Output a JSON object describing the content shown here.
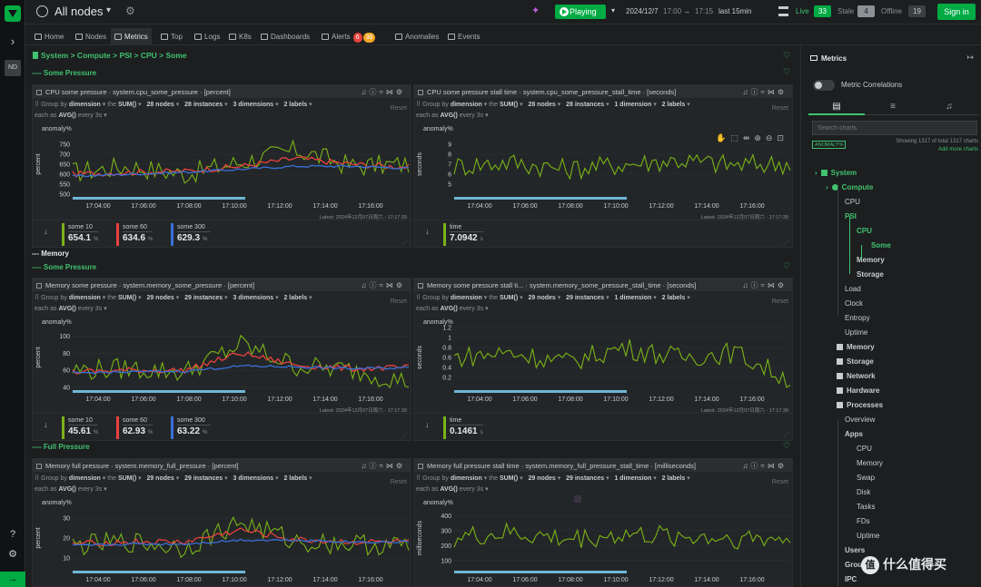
{
  "rail": {
    "user_initials": "ND"
  },
  "topbar": {
    "space_title": "All nodes",
    "play_label": "Playing",
    "date": "2024/12/7",
    "time_from": "17:00",
    "arrow": "→",
    "time_to": "17:15",
    "range": "last 15min",
    "live_label": "Live",
    "live_count": "33",
    "stale_label": "Stale",
    "stale_count": "4",
    "offline_label": "Offline",
    "offline_count": "19",
    "signin_label": "Sign in"
  },
  "tabs": [
    {
      "label": "Home"
    },
    {
      "label": "Nodes"
    },
    {
      "label": "Metrics"
    },
    {
      "label": "Top"
    },
    {
      "label": "Logs"
    },
    {
      "label": "K8s"
    },
    {
      "label": "Dashboards"
    },
    {
      "label": "Alerts"
    },
    {
      "label": "Anomalies"
    },
    {
      "label": "Events"
    }
  ],
  "alerts": {
    "critical": "6",
    "warning": "36"
  },
  "breadcrumb": "System > Compute > PSI > CPU > Some",
  "sections": {
    "cpu_some": "---- Some Pressure",
    "memory": "--- Memory",
    "mem_some": "---- Some Pressure",
    "mem_full": "---- Full Pressure"
  },
  "colors": {
    "accent": "#00ab44",
    "green_line": "#7ab317",
    "red_line": "#e8413e",
    "blue_line": "#3a6fd8",
    "critical": "#e8413e",
    "warning": "#f5a623"
  },
  "common": {
    "group_by": "Group by",
    "dimension": "dimension",
    "the": "the",
    "sum": "SUM()",
    "each_as": "each as",
    "avg": "AVG()",
    "every": "every 3s",
    "reset": "Reset",
    "latest": "Latest: 2024年12月07日周六 - 17:17:39",
    "anomaly_label": "anomaly%"
  },
  "cards": [
    {
      "title": "CPU some pressure · system.cpu_some_pressure · [percent]",
      "nodes": "28 nodes",
      "instances": "28 instances",
      "dimensions": "3 dimensions",
      "labels": "2 labels",
      "yunit": "percent",
      "legend": [
        {
          "name": "some 10",
          "value": "654.1",
          "unit": "%"
        },
        {
          "name": "some 60",
          "value": "634.6",
          "unit": "%"
        },
        {
          "name": "some 300",
          "value": "629.3",
          "unit": "%"
        }
      ]
    },
    {
      "title": "CPU some pressure stall time · system.cpu_some_pressure_stall_time · [seconds]",
      "nodes": "28 nodes",
      "instances": "28 instances",
      "dimensions": "1 dimension",
      "labels": "2 labels",
      "yunit": "seconds",
      "legend": [
        {
          "name": "time",
          "value": "7.0942",
          "unit": "s"
        }
      ]
    },
    {
      "title": "Memory some pressure · system.memory_some_pressure · [percent]",
      "nodes": "29 nodes",
      "instances": "29 instances",
      "dimensions": "3 dimensions",
      "labels": "2 labels",
      "yunit": "percent",
      "legend": [
        {
          "name": "some 10",
          "value": "45.61",
          "unit": "%"
        },
        {
          "name": "some 60",
          "value": "62.93",
          "unit": "%"
        },
        {
          "name": "some 300",
          "value": "63.22",
          "unit": "%"
        }
      ]
    },
    {
      "title": "Memory some pressure stall ti... · system.memory_some_pressure_stall_time · [seconds]",
      "nodes": "29 nodes",
      "instances": "29 instances",
      "dimensions": "1 dimension",
      "labels": "2 labels",
      "yunit": "seconds",
      "legend": [
        {
          "name": "time",
          "value": "0.1461",
          "unit": "s"
        }
      ]
    },
    {
      "title": "Memory full pressure · system.memory_full_pressure · [percent]",
      "nodes": "29 nodes",
      "instances": "29 instances",
      "dimensions": "3 dimensions",
      "labels": "2 labels",
      "yunit": "percent",
      "legend": []
    },
    {
      "title": "Memory full pressure stall time · system.memory_full_pressure_stall_time · [milliseconds]",
      "nodes": "29 nodes",
      "instances": "29 instances",
      "dimensions": "1 dimension",
      "labels": "2 labels",
      "yunit": "milliseconds",
      "legend": []
    }
  ],
  "chart_data": [
    {
      "type": "line",
      "title": "CPU some pressure",
      "ylabel": "percent",
      "x": [
        "17:04:00",
        "17:06:00",
        "17:08:00",
        "17:10:00",
        "17:12:00",
        "17:14:00",
        "17:16:00"
      ],
      "ylim": [
        500,
        800
      ],
      "yticks": [
        500,
        550,
        600,
        650,
        700,
        750
      ],
      "series": [
        {
          "name": "some 10",
          "values": [
            610,
            640,
            600,
            660,
            720,
            640,
            650
          ]
        },
        {
          "name": "some 60",
          "values": [
            600,
            610,
            615,
            640,
            680,
            650,
            635
          ]
        },
        {
          "name": "some 300",
          "values": [
            590,
            600,
            610,
            625,
            640,
            640,
            630
          ]
        }
      ]
    },
    {
      "type": "line",
      "title": "CPU some pressure stall time",
      "ylabel": "seconds",
      "x": [
        "17:04:00",
        "17:06:00",
        "17:08:00",
        "17:10:00",
        "17:12:00",
        "17:14:00",
        "17:16:00"
      ],
      "ylim": [
        4,
        10
      ],
      "yticks": [
        5,
        6,
        7,
        8,
        9
      ],
      "series": [
        {
          "name": "time",
          "values": [
            6.8,
            7.2,
            6.5,
            7.0,
            7.4,
            6.9,
            7.1
          ]
        }
      ]
    },
    {
      "type": "line",
      "title": "Memory some pressure",
      "ylabel": "percent",
      "x": [
        "17:04:00",
        "17:06:00",
        "17:08:00",
        "17:10:00",
        "17:12:00",
        "17:14:00",
        "17:16:00"
      ],
      "ylim": [
        40,
        110
      ],
      "yticks": [
        40,
        60,
        80,
        100
      ],
      "series": [
        {
          "name": "some 10",
          "values": [
            60,
            62,
            58,
            90,
            65,
            60,
            46
          ]
        },
        {
          "name": "some 60",
          "values": [
            58,
            60,
            60,
            80,
            66,
            62,
            63
          ]
        },
        {
          "name": "some 300",
          "values": [
            57,
            58,
            59,
            65,
            64,
            62,
            63
          ]
        }
      ]
    },
    {
      "type": "line",
      "title": "Memory some pressure stall time",
      "ylabel": "seconds",
      "x": [
        "17:04:00",
        "17:06:00",
        "17:08:00",
        "17:10:00",
        "17:12:00",
        "17:14:00",
        "17:16:00"
      ],
      "ylim": [
        0,
        1.2
      ],
      "yticks": [
        0.2,
        0.4,
        0.6,
        0.8,
        1,
        1.2
      ],
      "series": [
        {
          "name": "time",
          "values": [
            0.6,
            0.7,
            0.5,
            0.8,
            0.6,
            0.7,
            0.15
          ]
        }
      ]
    },
    {
      "type": "line",
      "title": "Memory full pressure",
      "ylabel": "percent",
      "x": [
        "17:04:00",
        "17:06:00",
        "17:08:00",
        "17:10:00",
        "17:12:00",
        "17:14:00",
        "17:16:00"
      ],
      "ylim": [
        5,
        35
      ],
      "yticks": [
        10,
        20,
        30
      ],
      "series": [
        {
          "name": "some 10",
          "values": [
            16,
            18,
            15,
            28,
            18,
            17,
            16
          ]
        },
        {
          "name": "some 60",
          "values": [
            17,
            18,
            18,
            24,
            19,
            18,
            18
          ]
        },
        {
          "name": "some 300",
          "values": [
            16,
            17,
            17,
            19,
            19,
            18,
            18
          ]
        }
      ]
    },
    {
      "type": "line",
      "title": "Memory full pressure stall time",
      "ylabel": "milliseconds",
      "x": [
        "17:04:00",
        "17:06:00",
        "17:08:00",
        "17:10:00",
        "17:12:00",
        "17:14:00",
        "17:16:00"
      ],
      "ylim": [
        50,
        450
      ],
      "yticks": [
        100,
        200,
        300,
        400
      ],
      "series": [
        {
          "name": "time",
          "values": [
            250,
            280,
            240,
            270,
            260,
            250,
            240
          ]
        }
      ]
    }
  ],
  "right_panel": {
    "title": "Metrics",
    "correlations": "Metric Correlations",
    "search_placeholder": "Search charts",
    "anomaly_badge": "ANOMALY%",
    "showing": "Showing 1317 of total 1317 charts",
    "add_more": "Add more charts",
    "toc": [
      {
        "label": "System",
        "cls": "toc-l1",
        "x": 14,
        "chev": "›",
        "icon": true
      },
      {
        "label": "Compute",
        "cls": "toc-l2",
        "x": 26,
        "chev": "›",
        "icon": true
      },
      {
        "label": "CPU",
        "cls": "toc-sub",
        "x": 47
      },
      {
        "label": "PSI",
        "cls": "toc-sub-active",
        "x": 47
      },
      {
        "label": "CPU",
        "cls": "toc-sub-active",
        "x": 60
      },
      {
        "label": "Some",
        "cls": "toc-sub-active",
        "x": 76
      },
      {
        "label": "Memory",
        "cls": "toc-bold",
        "x": 60
      },
      {
        "label": "Storage",
        "cls": "toc-bold",
        "x": 60
      },
      {
        "label": "Load",
        "cls": "toc-sub",
        "x": 47
      },
      {
        "label": "Clock",
        "cls": "toc-sub",
        "x": 47
      },
      {
        "label": "Entropy",
        "cls": "toc-sub",
        "x": 47
      },
      {
        "label": "Uptime",
        "cls": "toc-sub",
        "x": 47
      },
      {
        "label": "Memory",
        "cls": "toc-bold",
        "x": 38,
        "icon": true
      },
      {
        "label": "Storage",
        "cls": "toc-bold",
        "x": 38,
        "icon": true
      },
      {
        "label": "Network",
        "cls": "toc-bold",
        "x": 38,
        "icon": true
      },
      {
        "label": "Hardware",
        "cls": "toc-bold",
        "x": 38,
        "icon": true
      },
      {
        "label": "Processes",
        "cls": "toc-bold",
        "x": 38,
        "icon": true
      },
      {
        "label": "Overview",
        "cls": "toc-sub",
        "x": 47
      },
      {
        "label": "Apps",
        "cls": "toc-bold",
        "x": 47
      },
      {
        "label": "CPU",
        "cls": "toc-sub",
        "x": 60
      },
      {
        "label": "Memory",
        "cls": "toc-sub",
        "x": 60
      },
      {
        "label": "Swap",
        "cls": "toc-sub",
        "x": 60
      },
      {
        "label": "Disk",
        "cls": "toc-sub",
        "x": 60
      },
      {
        "label": "Tasks",
        "cls": "toc-sub",
        "x": 60
      },
      {
        "label": "FDs",
        "cls": "toc-sub",
        "x": 60
      },
      {
        "label": "Uptime",
        "cls": "toc-sub",
        "x": 60
      },
      {
        "label": "Users",
        "cls": "toc-bold",
        "x": 47
      },
      {
        "label": "Groups",
        "cls": "toc-bold",
        "x": 47
      },
      {
        "label": "IPC",
        "cls": "toc-bold",
        "x": 47
      }
    ]
  },
  "watermark": {
    "badge": "值",
    "text": "什么值得买"
  }
}
